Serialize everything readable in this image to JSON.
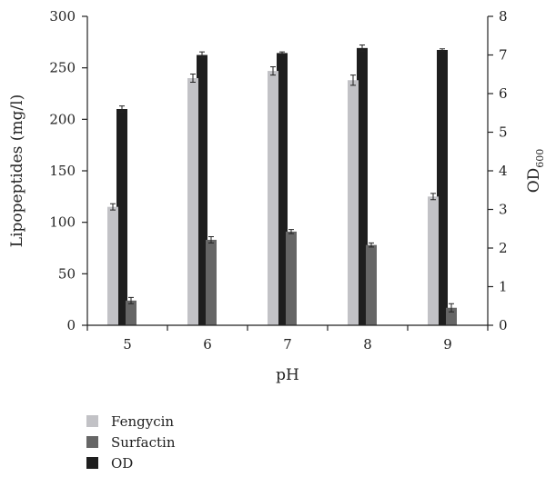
{
  "chart_data": {
    "type": "bar",
    "categories": [
      "5",
      "6",
      "7",
      "8",
      "9"
    ],
    "xlabel": "pH",
    "ylabel_left": "Lipopeptides (mg/l)",
    "ylabel_right": "OD",
    "ylabel_right_subscript": "600",
    "ylim_left": [
      0,
      300
    ],
    "yticks_left": [
      "0",
      "50",
      "100",
      "150",
      "200",
      "250",
      "300"
    ],
    "ylim_right": [
      0,
      8
    ],
    "yticks_right": [
      "0",
      "1",
      "2",
      "3",
      "4",
      "5",
      "6",
      "7",
      "8"
    ],
    "grid": false,
    "legend_position": "bottom-left",
    "series": [
      {
        "name": "Fengycin",
        "axis": "left",
        "color": "#c2c2c6",
        "values": [
          115,
          240,
          247,
          238,
          125
        ],
        "errors": [
          3,
          4,
          4,
          5,
          3
        ]
      },
      {
        "name": "Surfactin",
        "axis": "left",
        "color": "#666666",
        "values": [
          24,
          83,
          91,
          78,
          17
        ],
        "errors": [
          3,
          3,
          2,
          2,
          4
        ]
      },
      {
        "name": "OD",
        "axis": "right",
        "color": "#1e1e1e",
        "values": [
          5.6,
          7.0,
          7.05,
          7.18,
          7.13
        ],
        "errors": [
          0.08,
          0.08,
          0.03,
          0.08,
          0.03
        ]
      }
    ]
  }
}
